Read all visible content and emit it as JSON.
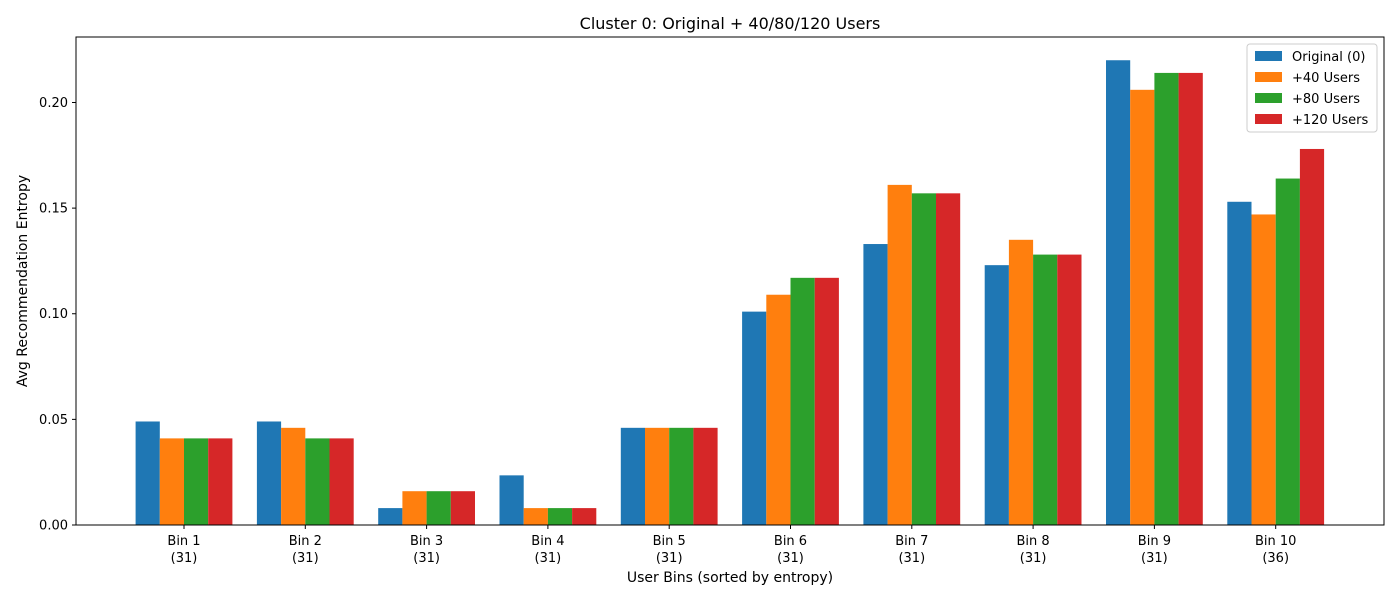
{
  "chart_data": {
    "type": "bar",
    "title": "Cluster 0: Original + 40/80/120 Users",
    "xlabel": "User Bins (sorted by entropy)",
    "ylabel": "Avg Recommendation Entropy",
    "ylim": [
      0,
      0.231
    ],
    "yticks": [
      0.0,
      0.05,
      0.1,
      0.15,
      0.2
    ],
    "ytick_labels": [
      "0.00",
      "0.05",
      "0.10",
      "0.15",
      "0.20"
    ],
    "categories": [
      "Bin 1",
      "Bin 2",
      "Bin 3",
      "Bin 4",
      "Bin 5",
      "Bin 6",
      "Bin 7",
      "Bin 8",
      "Bin 9",
      "Bin 10"
    ],
    "category_counts": [
      "(31)",
      "(31)",
      "(31)",
      "(31)",
      "(31)",
      "(31)",
      "(31)",
      "(31)",
      "(31)",
      "(36)"
    ],
    "grid": false,
    "legend_position": "top-right",
    "series": [
      {
        "name": "Original (0)",
        "color": "#1f77b4",
        "values": [
          0.049,
          0.049,
          0.008,
          0.0235,
          0.046,
          0.101,
          0.133,
          0.123,
          0.22,
          0.153
        ]
      },
      {
        "name": "+40 Users",
        "color": "#ff7f0e",
        "values": [
          0.041,
          0.046,
          0.016,
          0.008,
          0.046,
          0.109,
          0.161,
          0.135,
          0.206,
          0.147
        ]
      },
      {
        "name": "+80 Users",
        "color": "#2ca02c",
        "values": [
          0.041,
          0.041,
          0.016,
          0.008,
          0.046,
          0.117,
          0.157,
          0.128,
          0.214,
          0.164
        ]
      },
      {
        "name": "+120 Users",
        "color": "#d62728",
        "values": [
          0.041,
          0.041,
          0.016,
          0.008,
          0.046,
          0.117,
          0.157,
          0.128,
          0.214,
          0.178
        ]
      }
    ]
  }
}
